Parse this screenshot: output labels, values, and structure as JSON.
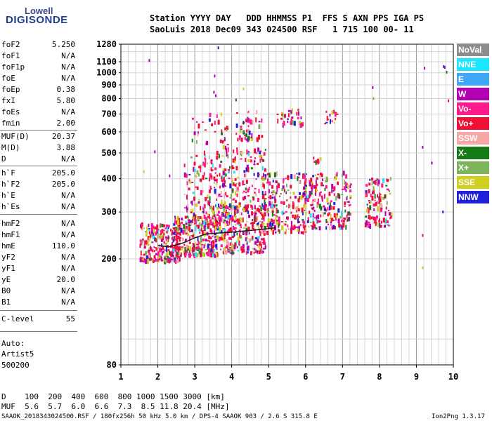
{
  "logo": {
    "line1": "Lowell",
    "line2": "DIGISONDE"
  },
  "header": {
    "line1": "Station YYYY DAY   DDD HHMMSS P1  FFS S AXN PPS IGA PS",
    "line2": "SaoLuis 2018 Dec09 343 024500 RSF   1 715 100 00- 11"
  },
  "params": [
    {
      "k": "foF2",
      "v": "5.250"
    },
    {
      "k": "foF1",
      "v": "N/A"
    },
    {
      "k": "foF1p",
      "v": "N/A"
    },
    {
      "k": "foE",
      "v": "N/A"
    },
    {
      "k": "foEp",
      "v": "0.38"
    },
    {
      "k": "fxI",
      "v": "5.80"
    },
    {
      "k": "foEs",
      "v": "N/A"
    },
    {
      "k": "fmin",
      "v": "2.00"
    },
    {
      "k": "MUF(D)",
      "v": "20.37"
    },
    {
      "k": "M(D)",
      "v": "3.88"
    },
    {
      "k": "D",
      "v": "N/A"
    },
    {
      "k": "h`F",
      "v": "205.0"
    },
    {
      "k": "h`F2",
      "v": "205.0"
    },
    {
      "k": "h`E",
      "v": "N/A"
    },
    {
      "k": "h`Es",
      "v": "N/A"
    },
    {
      "k": "hmF2",
      "v": "N/A"
    },
    {
      "k": "hmF1",
      "v": "N/A"
    },
    {
      "k": "hmE",
      "v": "110.0"
    },
    {
      "k": "yF2",
      "v": "N/A"
    },
    {
      "k": "yF1",
      "v": "N/A"
    },
    {
      "k": "yE",
      "v": "20.0"
    },
    {
      "k": "B0",
      "v": "N/A"
    },
    {
      "k": "B1",
      "v": "N/A"
    },
    {
      "k": "C-level",
      "v": "55"
    }
  ],
  "auto": {
    "line1": "Auto:",
    "line2": "Artist5",
    "line3": "500200"
  },
  "legend": [
    {
      "label": "NoVal",
      "color": "#8c8c8c"
    },
    {
      "label": "NNE",
      "color": "#19e6ff"
    },
    {
      "label": "E",
      "color": "#3fa7f5"
    },
    {
      "label": "W",
      "color": "#b300b3"
    },
    {
      "label": "Vo-",
      "color": "#ff1a8c"
    },
    {
      "label": "Vo+",
      "color": "#f01035"
    },
    {
      "label": "SSW",
      "color": "#f7a6a6"
    },
    {
      "label": "X-",
      "color": "#167a16"
    },
    {
      "label": "X+",
      "color": "#7fb55a"
    },
    {
      "label": "SSE",
      "color": "#cfcf1e"
    },
    {
      "label": "NNW",
      "color": "#2020d8"
    }
  ],
  "footer": {
    "d_row": "D    100  200  400  600  800 1000 1500 3000 [km]",
    "muf_row": "MUF  5.6  5.7  6.0  6.6  7.3  8.5 11.8 20.4 [MHz]",
    "file_line": "SAAOK_2018343024500.RSF / 180fx256h 50 kHz 5.0 km / DPS-4 SAAOK 903 / 2.6 S 315.8 E",
    "version": "Ion2Png 1.3.17"
  },
  "chart_data": {
    "type": "scatter",
    "xlabel": "",
    "ylabel": "",
    "xlim": [
      1,
      10
    ],
    "ylim": [
      80,
      1280
    ],
    "y_scale": "log",
    "x_ticks": [
      1,
      2,
      3,
      4,
      5,
      6,
      7,
      8,
      9,
      10
    ],
    "y_ticks": [
      80,
      200,
      300,
      400,
      500,
      600,
      700,
      800,
      900,
      1000,
      1100,
      1280
    ],
    "grid": true,
    "clusters": [
      {
        "x0": 1.5,
        "x1": 2.6,
        "y0": 195,
        "y1": 270,
        "n": 260
      },
      {
        "x0": 2.4,
        "x1": 3.6,
        "y0": 205,
        "y1": 290,
        "n": 260
      },
      {
        "x0": 3.4,
        "x1": 4.9,
        "y0": 210,
        "y1": 320,
        "n": 300
      },
      {
        "x0": 2.7,
        "x1": 3.7,
        "y0": 270,
        "y1": 500,
        "n": 140
      },
      {
        "x0": 3.7,
        "x1": 4.9,
        "y0": 280,
        "y1": 520,
        "n": 190
      },
      {
        "x0": 4.8,
        "x1": 6.0,
        "y0": 250,
        "y1": 420,
        "n": 230
      },
      {
        "x0": 5.9,
        "x1": 7.2,
        "y0": 260,
        "y1": 420,
        "n": 210
      },
      {
        "x0": 7.6,
        "x1": 8.3,
        "y0": 265,
        "y1": 400,
        "n": 110
      },
      {
        "x0": 4.1,
        "x1": 4.8,
        "y0": 560,
        "y1": 720,
        "n": 50
      },
      {
        "x0": 5.2,
        "x1": 5.9,
        "y0": 630,
        "y1": 730,
        "n": 35
      },
      {
        "x0": 2.9,
        "x1": 3.9,
        "y0": 520,
        "y1": 700,
        "n": 35
      },
      {
        "x0": 6.5,
        "x1": 6.9,
        "y0": 640,
        "y1": 730,
        "n": 15
      },
      {
        "x0": 6.2,
        "x1": 6.4,
        "y0": 460,
        "y1": 500,
        "n": 10
      }
    ],
    "points": [
      {
        "x": 1.75,
        "y": 1112,
        "c": 4
      },
      {
        "x": 3.62,
        "y": 1240,
        "c": 11
      },
      {
        "x": 3.52,
        "y": 972,
        "c": 4
      },
      {
        "x": 3.5,
        "y": 845,
        "c": 4
      },
      {
        "x": 3.55,
        "y": 820,
        "c": 4
      },
      {
        "x": 4.3,
        "y": 870,
        "c": 10
      },
      {
        "x": 4.1,
        "y": 790,
        "c": 8
      },
      {
        "x": 7.8,
        "y": 880,
        "c": 4
      },
      {
        "x": 7.82,
        "y": 800,
        "c": 9
      },
      {
        "x": 9.2,
        "y": 1040,
        "c": 4
      },
      {
        "x": 9.72,
        "y": 1055,
        "c": 11
      },
      {
        "x": 9.75,
        "y": 1048,
        "c": 4
      },
      {
        "x": 9.8,
        "y": 1005,
        "c": 8
      },
      {
        "x": 9.85,
        "y": 785,
        "c": 6
      },
      {
        "x": 9.15,
        "y": 525,
        "c": 4
      },
      {
        "x": 9.4,
        "y": 458,
        "c": 4
      },
      {
        "x": 9.7,
        "y": 300,
        "c": 11
      },
      {
        "x": 9.15,
        "y": 185,
        "c": 10
      },
      {
        "x": 9.15,
        "y": 245,
        "c": 6
      },
      {
        "x": 1.9,
        "y": 505,
        "c": 4
      },
      {
        "x": 1.6,
        "y": 425,
        "c": 10
      },
      {
        "x": 2.3,
        "y": 410,
        "c": 4
      }
    ],
    "trace": [
      [
        2.0,
        225
      ],
      [
        2.3,
        222
      ],
      [
        2.7,
        230
      ],
      [
        3.0,
        240
      ],
      [
        3.3,
        248
      ],
      [
        3.6,
        250
      ],
      [
        4.0,
        252
      ],
      [
        4.4,
        255
      ],
      [
        4.8,
        258
      ],
      [
        5.2,
        262
      ]
    ]
  }
}
